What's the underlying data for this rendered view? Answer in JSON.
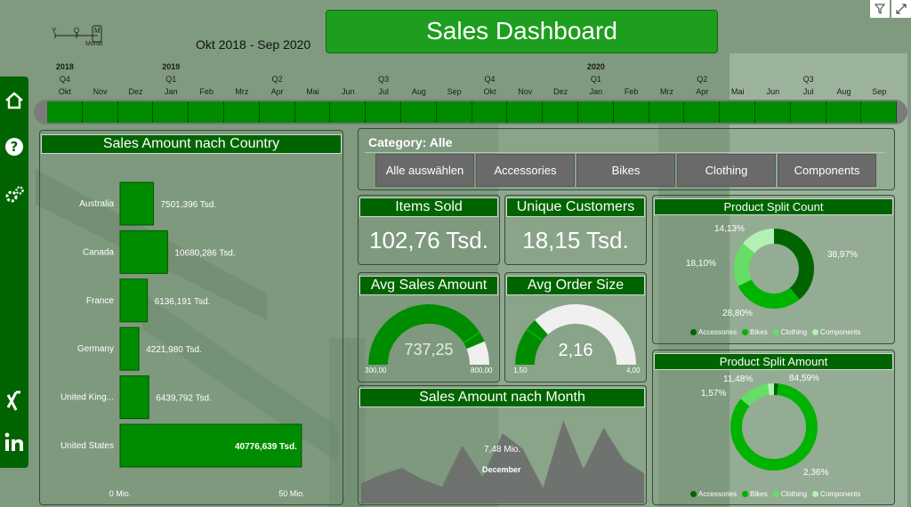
{
  "header": {
    "title": "Sales Dashboard",
    "period": "Okt 2018 - Sep 2020",
    "granularity": [
      "Y",
      "Q",
      "M"
    ],
    "granularity_label": "Monat"
  },
  "timeline": {
    "years": [
      "2018",
      "2019",
      "2020"
    ],
    "quarters": [
      "Q4",
      "Q1",
      "Q2",
      "Q3",
      "Q4",
      "Q1",
      "Q2",
      "Q3"
    ],
    "months": [
      "Okt",
      "Nov",
      "Dez",
      "Jan",
      "Feb",
      "Mrz",
      "Apr",
      "Mai",
      "Jun",
      "Jul",
      "Aug",
      "Sep",
      "Okt",
      "Nov",
      "Dez",
      "Jan",
      "Feb",
      "Mrz",
      "Apr",
      "Mai",
      "Jun",
      "Jul",
      "Aug",
      "Sep"
    ]
  },
  "country_chart": {
    "title": "Sales Amount nach Country",
    "axis_min_label": "0 Mio.",
    "axis_max_label": "50 Mio."
  },
  "category": {
    "label": "Category: Alle",
    "buttons": [
      "Alle auswählen",
      "Accessories",
      "Bikes",
      "Clothing",
      "Components"
    ]
  },
  "kpis": {
    "items_sold": {
      "title": "Items Sold",
      "value": "102,76 Tsd."
    },
    "unique_customers": {
      "title": "Unique Customers",
      "value": "18,15 Tsd."
    }
  },
  "gauges": {
    "avg_sales": {
      "title": "Avg Sales Amount",
      "value": "737,25",
      "min": "300,00",
      "max": "800,00",
      "fill": 0.874,
      "target": 0.82
    },
    "avg_order": {
      "title": "Avg Order Size",
      "value": "2,16",
      "min": "1,50",
      "max": "4,00",
      "fill": 0.264,
      "target": 0.2
    }
  },
  "month_chart": {
    "title": "Sales Amount nach Month",
    "tooltip_value": "7,48 Mio.",
    "tooltip_label": "December"
  },
  "donut_count": {
    "title": "Product Split Count",
    "labels": [
      "38,97%",
      "28,80%",
      "18,10%",
      "14,13%"
    ]
  },
  "donut_amount": {
    "title": "Product Split Amount",
    "labels": [
      "84,59%",
      "2,36%",
      "11,48%",
      "1,57%"
    ]
  },
  "legend_items": [
    "Accessories",
    "Bikes",
    "Clothing",
    "Components"
  ],
  "colors": {
    "accessories": "#006400",
    "bikes": "#00b300",
    "clothing": "#66dd66",
    "components": "#b3f0b3",
    "accent": "#008c00"
  },
  "chart_data": [
    {
      "type": "bar",
      "title": "Sales Amount nach Country",
      "categories": [
        "Australia",
        "Canada",
        "France",
        "Germany",
        "United King...",
        "United States"
      ],
      "values": [
        7501.396,
        10680.286,
        6136.191,
        4221.98,
        6439.792,
        40776.639
      ],
      "value_labels": [
        "7501,396 Tsd.",
        "10680,286 Tsd.",
        "6136,191 Tsd.",
        "4221,980 Tsd.",
        "6439,792 Tsd.",
        "40776,639 Tsd."
      ],
      "xlim": [
        0,
        50000
      ]
    },
    {
      "type": "area",
      "title": "Sales Amount nach Month",
      "values": [
        1.8,
        2.6,
        3.2,
        2.2,
        1.5,
        5.2,
        2.4,
        6.3,
        4.9,
        1.4,
        7.48,
        3.1,
        6.8,
        3.9,
        2.7
      ],
      "ylim": [
        0,
        8
      ]
    },
    {
      "type": "pie",
      "title": "Product Split Count",
      "categories": [
        "Accessories",
        "Bikes",
        "Clothing",
        "Components"
      ],
      "values": [
        38.97,
        28.8,
        18.1,
        14.13
      ]
    },
    {
      "type": "pie",
      "title": "Product Split Amount",
      "categories": [
        "Accessories",
        "Bikes",
        "Clothing",
        "Components"
      ],
      "values": [
        1.57,
        84.59,
        11.48,
        2.36
      ]
    }
  ]
}
